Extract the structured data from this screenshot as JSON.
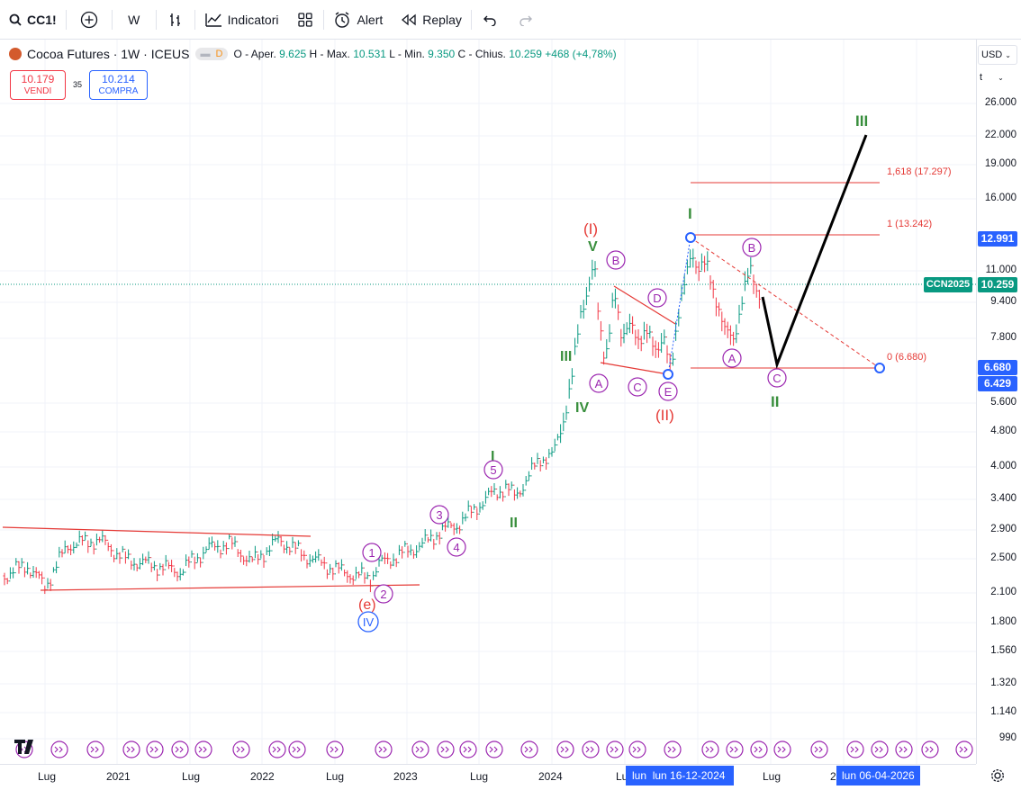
{
  "toolbar": {
    "symbol": "CC1!",
    "interval": "W",
    "indicators_label": "Indicatori",
    "alert_label": "Alert",
    "replay_label": "Replay"
  },
  "legend": {
    "title": "Cocoa Futures · 1W · ICEUS",
    "badge": "D",
    "open_label": "O - Aper.",
    "open": "9.625",
    "high_label": "H - Max.",
    "high": "10.531",
    "low_label": "L - Min.",
    "low": "9.350",
    "close_label": "C - Chius.",
    "close": "10.259",
    "change": "+468 (+4,78%)"
  },
  "trade": {
    "sell_price": "10.179",
    "sell_label": "VENDI",
    "spread": "35",
    "buy_price": "10.214",
    "buy_label": "COMPRA"
  },
  "price_axis": {
    "currency": "USD",
    "unit": "t",
    "ticks": [
      "26.000",
      "22.000",
      "19.000",
      "16.000",
      "11.000",
      "9.400",
      "7.800",
      "5.600",
      "4.800",
      "4.000",
      "3.400",
      "2.900",
      "2.500",
      "2.100",
      "1.800",
      "1.560",
      "1.320",
      "1.140",
      "990"
    ],
    "badges": [
      {
        "text": "12.991",
        "color": "#2962ff"
      },
      {
        "text": "CCN2025",
        "color": "#089981"
      },
      {
        "text": "10.259",
        "color": "#089981"
      },
      {
        "text": "6.680",
        "color": "#2962ff"
      },
      {
        "text": "6.429",
        "color": "#2962ff"
      }
    ]
  },
  "time_axis": {
    "labels": [
      "Lug",
      "2021",
      "Lug",
      "2022",
      "Lug",
      "2023",
      "Lug",
      "2024",
      "Lu",
      "Lug",
      "2"
    ],
    "range_start": "lun",
    "range_start_date": "lun 16-12-2024",
    "range_end_date": "lun 06-04-2026"
  },
  "fib": {
    "level_1618": "1,618 (17.297)",
    "level_1": "1 (13.242)",
    "level_0": "0 (6.680)"
  },
  "waves": {
    "big_I": "I",
    "big_II": "II",
    "big_III": "III",
    "red_I": "(I)",
    "red_II": "(II)",
    "red_e": "(e)",
    "blue_IV": "IV",
    "green_V": "V",
    "green_III": "III",
    "green_IV": "IV",
    "green_I_small": "I",
    "green_II_small": "II",
    "circ_1": "1",
    "circ_2": "2",
    "circ_3": "3",
    "circ_4": "4",
    "circ_5": "5",
    "circ_A": "A",
    "circ_B": "B",
    "circ_C": "C",
    "circ_D": "D",
    "circ_E": "E"
  },
  "colors": {
    "bull": "#089981",
    "bear": "#f23645",
    "wave_green": "#388e3c",
    "wave_purple": "#9c27b0",
    "wave_red": "#e53935",
    "accent_blue": "#2962ff"
  }
}
